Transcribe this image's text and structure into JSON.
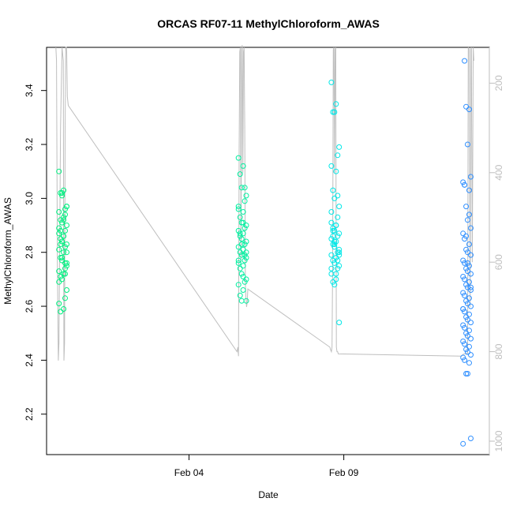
{
  "chart_data": {
    "type": "scatter",
    "title": "ORCAS RF07-11 MethylChloroform_AWAS",
    "xlabel": "Date",
    "ylabel": "MethylChloroform_AWAS",
    "x_axis": {
      "unit": "days",
      "range_days": [
        -4.6,
        9.7
      ],
      "ticks": [
        {
          "value": 0,
          "label": "Feb 04"
        },
        {
          "value": 5,
          "label": "Feb 09"
        }
      ]
    },
    "y_axis": {
      "range": [
        2.05,
        3.56
      ],
      "ticks": [
        2.2,
        2.4,
        2.6,
        2.8,
        3.0,
        3.2,
        3.4
      ]
    },
    "y2_axis": {
      "range": [
        1030,
        120
      ],
      "ticks": [
        200,
        400,
        600,
        800,
        1000
      ],
      "color": "#bebebe"
    },
    "legend": "none",
    "grid": false,
    "series": [
      {
        "color": "#00f080",
        "x": [
          -4.2,
          -4.05,
          -4.15,
          -4.1,
          -3.95,
          -4.0,
          -4.2,
          -4.05,
          -4.15,
          -4.1,
          -3.95,
          -4.0,
          -4.2,
          -4.05,
          -4.15,
          -4.1,
          -3.95,
          -4.0,
          -4.2,
          -4.05,
          -4.15,
          -4.1,
          -3.95,
          -4.0,
          -4.2,
          -4.05,
          -4.15,
          -4.1,
          -3.95,
          -4.0,
          -4.2,
          -4.05,
          -4.15,
          -4.1,
          -3.95,
          -4.0,
          -4.2,
          -4.05,
          -4.15,
          -4.1,
          -3.95,
          -4.0,
          -4.2,
          -4.05,
          -4.15,
          -4.1,
          -3.95,
          -4.0
        ],
        "y": [
          3.1,
          3.03,
          3.02,
          3.01,
          2.97,
          2.96,
          2.95,
          2.93,
          2.92,
          2.91,
          2.9,
          2.88,
          2.87,
          2.86,
          2.85,
          2.84,
          2.83,
          2.82,
          2.81,
          2.8,
          2.78,
          2.77,
          2.76,
          2.74,
          2.73,
          2.72,
          2.71,
          2.7,
          2.66,
          2.63,
          2.61,
          2.59,
          2.58,
          3.02,
          2.97,
          2.94,
          2.89,
          2.86,
          2.83,
          2.78,
          2.75,
          2.72,
          2.69,
          2.92,
          2.88,
          2.84,
          2.8,
          2.76
        ]
      },
      {
        "color": "#00f0a0",
        "x": [
          1.6,
          1.75,
          1.65,
          1.7,
          1.85,
          1.8,
          1.6,
          1.75,
          1.65,
          1.7,
          1.85,
          1.8,
          1.6,
          1.75,
          1.65,
          1.7,
          1.85,
          1.8,
          1.6,
          1.75,
          1.65,
          1.7,
          1.85,
          1.8,
          1.6,
          1.75,
          1.65,
          1.7,
          1.85,
          1.8,
          1.6,
          1.75,
          1.65,
          1.7,
          1.85,
          1.8,
          1.6,
          1.75,
          1.65,
          1.7,
          1.85,
          1.8,
          1.6,
          1.75
        ],
        "y": [
          3.15,
          3.12,
          3.09,
          3.04,
          3.01,
          2.99,
          2.97,
          2.95,
          2.93,
          2.91,
          2.9,
          2.89,
          2.88,
          2.87,
          2.86,
          2.85,
          2.84,
          2.83,
          2.82,
          2.81,
          2.8,
          2.79,
          2.78,
          2.77,
          2.76,
          2.75,
          2.74,
          2.72,
          2.7,
          2.69,
          2.68,
          2.66,
          2.64,
          2.62,
          2.62,
          3.04,
          2.96,
          2.91,
          2.87,
          2.83,
          2.8,
          2.79,
          2.77,
          2.71
        ]
      },
      {
        "color": "#00e8e8",
        "x": [
          4.6,
          4.75,
          4.65,
          4.7,
          4.85,
          4.8,
          4.6,
          4.75,
          4.65,
          4.7,
          4.85,
          4.8,
          4.6,
          4.75,
          4.65,
          4.7,
          4.85,
          4.8,
          4.6,
          4.75,
          4.65,
          4.7,
          4.85,
          4.8,
          4.6,
          4.75,
          4.65,
          4.7,
          4.85,
          4.8,
          4.6,
          4.75,
          4.65,
          4.7,
          4.85,
          4.8,
          4.6,
          4.75,
          4.65,
          4.7,
          4.85,
          4.8,
          4.6,
          4.75,
          4.65,
          4.7,
          4.85
        ],
        "y": [
          3.43,
          3.35,
          3.32,
          3.32,
          3.19,
          3.16,
          3.12,
          3.1,
          3.03,
          3.0,
          2.97,
          2.93,
          2.91,
          2.9,
          2.89,
          2.88,
          2.87,
          2.86,
          2.85,
          2.84,
          2.83,
          2.82,
          2.81,
          2.8,
          2.79,
          2.78,
          2.77,
          2.76,
          2.75,
          2.74,
          2.72,
          2.7,
          2.69,
          2.68,
          2.54,
          3.01,
          2.95,
          2.9,
          2.86,
          2.83,
          2.8,
          2.77,
          2.74,
          2.72,
          2.88,
          2.84,
          2.79
        ]
      },
      {
        "color": "#2f8fff",
        "x": [
          8.9,
          9.05,
          8.95,
          9.0,
          9.1,
          8.85,
          8.9,
          9.05,
          8.95,
          9.0,
          9.1,
          8.85,
          8.9,
          9.05,
          8.95,
          9.0,
          9.1,
          8.85,
          8.9,
          9.05,
          8.95,
          9.0,
          9.1,
          8.85,
          8.9,
          9.05,
          8.95,
          9.0,
          9.1,
          8.85,
          8.9,
          9.05,
          8.95,
          9.0,
          9.1,
          8.85,
          8.9,
          9.05,
          8.95,
          9.0,
          9.1,
          8.85,
          8.9,
          9.05,
          8.95,
          9.0,
          9.1,
          8.85,
          8.9,
          9.05,
          8.95,
          9.0,
          9.1,
          8.85,
          8.9,
          9.05,
          8.95,
          9.0,
          9.1,
          8.85,
          8.9,
          9.05,
          8.95,
          9.0,
          9.1,
          8.85
        ],
        "y": [
          3.51,
          3.33,
          3.34,
          3.2,
          3.08,
          3.06,
          3.05,
          3.03,
          2.97,
          2.92,
          2.89,
          2.87,
          2.85,
          2.83,
          2.81,
          2.8,
          2.79,
          2.77,
          2.76,
          2.75,
          2.74,
          2.73,
          2.72,
          2.71,
          2.7,
          2.69,
          2.68,
          2.67,
          2.66,
          2.65,
          2.64,
          2.63,
          2.62,
          2.61,
          2.6,
          2.59,
          2.58,
          2.57,
          2.56,
          2.55,
          2.54,
          2.53,
          2.52,
          2.51,
          2.5,
          2.49,
          2.48,
          2.47,
          2.46,
          2.45,
          2.44,
          2.43,
          2.42,
          2.41,
          2.4,
          2.39,
          2.35,
          2.35,
          2.11,
          2.09,
          3.05,
          2.94,
          2.86,
          2.76,
          2.67,
          2.59
        ]
      }
    ],
    "altitude_series": {
      "color": "#bebebe",
      "x": [
        -4.3,
        -4.28,
        -4.25,
        -4.22,
        -4.2,
        -4.15,
        -4.1,
        -4.06,
        -4.04,
        -4.02,
        -4.0,
        -3.98,
        -3.96,
        -3.95,
        -3.93,
        -3.9,
        1.55,
        1.58,
        1.6,
        1.62,
        1.64,
        1.66,
        1.68,
        1.7,
        1.72,
        1.74,
        1.76,
        1.78,
        1.8,
        1.82,
        1.84,
        1.86,
        1.88,
        1.9,
        4.55,
        4.57,
        4.6,
        4.62,
        4.64,
        4.66,
        4.68,
        4.7,
        4.72,
        4.74,
        4.76,
        4.78,
        4.8,
        4.82,
        8.8,
        8.85,
        8.9,
        8.95,
        9.0,
        9.02,
        9.05,
        9.08,
        9.1,
        9.12,
        9.15,
        9.18,
        9.2
      ],
      "y": [
        120,
        150,
        600,
        820,
        780,
        300,
        120,
        150,
        820,
        780,
        300,
        120,
        120,
        130,
        230,
        250,
        800,
        790,
        810,
        350,
        130,
        120,
        600,
        125,
        115,
        400,
        130,
        120,
        300,
        650,
        680,
        700,
        690,
        660,
        790,
        795,
        800,
        790,
        600,
        125,
        120,
        400,
        125,
        120,
        790,
        800,
        800,
        805,
        810,
        806,
        805,
        805,
        804,
        120,
        125,
        700,
        125,
        120,
        600,
        120,
        150
      ]
    }
  }
}
